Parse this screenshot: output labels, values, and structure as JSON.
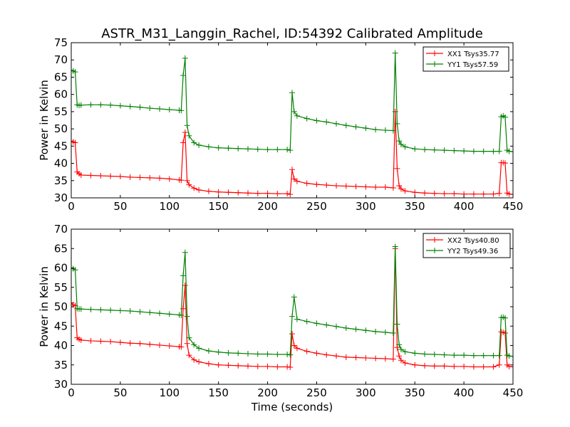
{
  "chart_data": [
    {
      "type": "line",
      "title": "ASTR_M31_Langgin_Rachel, ID:54392 Calibrated Amplitude",
      "xlabel": "",
      "ylabel": "Power in Kelvin",
      "xlim": [
        0,
        450
      ],
      "ylim": [
        30,
        75
      ],
      "xticks": [
        "0",
        "50",
        "100",
        "150",
        "200",
        "250",
        "300",
        "350",
        "400",
        "450"
      ],
      "yticks": [
        "30",
        "35",
        "40",
        "45",
        "50",
        "55",
        "60",
        "65",
        "70",
        "75"
      ],
      "legend": "top-right",
      "series": [
        {
          "name": "XX1 Tsys35.77",
          "color": "#ff0000",
          "x": [
            0,
            2,
            4,
            6,
            8,
            10,
            20,
            30,
            40,
            50,
            60,
            70,
            80,
            90,
            100,
            110,
            112,
            114,
            116,
            118,
            120,
            125,
            130,
            140,
            150,
            160,
            170,
            180,
            190,
            200,
            210,
            220,
            223,
            225,
            227,
            230,
            240,
            250,
            260,
            270,
            280,
            290,
            300,
            310,
            320,
            328,
            330,
            332,
            334,
            336,
            340,
            350,
            360,
            370,
            380,
            390,
            400,
            410,
            420,
            430,
            436,
            438,
            440,
            442,
            444,
            446,
            450
          ],
          "values": [
            46.5,
            46.2,
            46,
            37.5,
            37,
            36.6,
            36.5,
            36.4,
            36.3,
            36.2,
            36,
            35.9,
            35.8,
            35.7,
            35.5,
            35.2,
            35.1,
            46,
            49,
            35,
            33.8,
            32.8,
            32.3,
            31.9,
            31.7,
            31.6,
            31.5,
            31.4,
            31.3,
            31.3,
            31.2,
            31.2,
            31,
            38.2,
            35.5,
            34.8,
            34.2,
            33.9,
            33.7,
            33.5,
            33.4,
            33.3,
            33.2,
            33.1,
            33.1,
            32.9,
            55,
            38.5,
            33.5,
            32.6,
            32,
            31.6,
            31.4,
            31.3,
            31.2,
            31.2,
            31.1,
            31.1,
            31.1,
            31.1,
            31.3,
            40.2,
            40.2,
            40.1,
            31.4,
            31.1,
            31
          ]
        },
        {
          "name": "YY1 Tsys57.59",
          "color": "#008000",
          "x": [
            0,
            2,
            4,
            6,
            8,
            10,
            20,
            30,
            40,
            50,
            60,
            70,
            80,
            90,
            100,
            110,
            112,
            114,
            116,
            118,
            120,
            125,
            130,
            140,
            150,
            160,
            170,
            180,
            190,
            200,
            210,
            220,
            223,
            225,
            227,
            230,
            240,
            250,
            260,
            270,
            280,
            290,
            300,
            310,
            320,
            328,
            330,
            332,
            334,
            336,
            340,
            350,
            360,
            370,
            380,
            390,
            400,
            410,
            420,
            430,
            436,
            438,
            440,
            442,
            444,
            446,
            450
          ],
          "values": [
            67,
            66.8,
            66.5,
            57,
            56.8,
            56.9,
            57,
            57,
            56.9,
            56.7,
            56.5,
            56.3,
            56,
            55.8,
            55.6,
            55.4,
            55.3,
            65.5,
            70.5,
            51,
            48,
            46,
            45.3,
            44.8,
            44.5,
            44.4,
            44.3,
            44.2,
            44.1,
            44,
            44,
            44,
            43.8,
            60.5,
            55,
            53.8,
            53,
            52.4,
            52,
            51.5,
            51,
            50.6,
            50.2,
            49.8,
            49.6,
            49.5,
            72,
            51.5,
            46.5,
            45.5,
            44.8,
            44.2,
            44,
            43.9,
            43.8,
            43.7,
            43.6,
            43.5,
            43.5,
            43.5,
            43.5,
            53.5,
            53.8,
            53.4,
            43.8,
            43.5,
            43.4
          ]
        }
      ]
    },
    {
      "type": "line",
      "title": "",
      "xlabel": "Time (seconds)",
      "ylabel": "Power in Kelvin",
      "xlim": [
        0,
        450
      ],
      "ylim": [
        30,
        70
      ],
      "xticks": [
        "0",
        "50",
        "100",
        "150",
        "200",
        "250",
        "300",
        "350",
        "400",
        "450"
      ],
      "yticks": [
        "30",
        "35",
        "40",
        "45",
        "50",
        "55",
        "60",
        "65",
        "70"
      ],
      "legend": "top-right",
      "series": [
        {
          "name": "XX2 Tsys40.80",
          "color": "#ff0000",
          "x": [
            0,
            2,
            4,
            6,
            8,
            10,
            20,
            30,
            40,
            50,
            60,
            70,
            80,
            90,
            100,
            110,
            112,
            114,
            116,
            118,
            120,
            125,
            130,
            140,
            150,
            160,
            170,
            180,
            190,
            200,
            210,
            220,
            223,
            225,
            227,
            230,
            240,
            250,
            260,
            270,
            280,
            290,
            300,
            310,
            320,
            328,
            330,
            332,
            334,
            336,
            340,
            350,
            360,
            370,
            380,
            390,
            400,
            410,
            420,
            430,
            436,
            438,
            440,
            442,
            444,
            446,
            450
          ],
          "values": [
            51,
            50.5,
            50.3,
            42,
            41.6,
            41.4,
            41.2,
            41.1,
            41,
            40.8,
            40.6,
            40.5,
            40.3,
            40.1,
            39.9,
            39.7,
            39.6,
            49.5,
            55.5,
            40.5,
            37.5,
            36.3,
            35.8,
            35.3,
            35,
            34.9,
            34.8,
            34.7,
            34.6,
            34.6,
            34.5,
            34.5,
            34.4,
            43,
            40,
            39.3,
            38.5,
            38,
            37.6,
            37.3,
            37,
            36.9,
            36.8,
            36.7,
            36.6,
            36.5,
            65,
            39.5,
            37.3,
            36.2,
            35.5,
            35,
            34.8,
            34.7,
            34.7,
            34.6,
            34.6,
            34.5,
            34.5,
            34.5,
            35,
            43.5,
            43.4,
            43.2,
            35,
            34.6,
            34.5
          ]
        },
        {
          "name": "YY2 Tsys49.36",
          "color": "#008000",
          "x": [
            0,
            2,
            4,
            6,
            8,
            10,
            20,
            30,
            40,
            50,
            60,
            70,
            80,
            90,
            100,
            110,
            112,
            114,
            116,
            118,
            120,
            125,
            130,
            140,
            150,
            160,
            170,
            180,
            190,
            200,
            210,
            220,
            223,
            225,
            227,
            230,
            240,
            250,
            260,
            270,
            280,
            290,
            300,
            310,
            320,
            328,
            330,
            332,
            334,
            336,
            340,
            350,
            360,
            370,
            380,
            390,
            400,
            410,
            420,
            430,
            436,
            438,
            440,
            442,
            444,
            446,
            450
          ],
          "values": [
            60,
            59.8,
            59.5,
            49.5,
            49.4,
            49.4,
            49.3,
            49.2,
            49.1,
            49,
            48.9,
            48.7,
            48.5,
            48.3,
            48.1,
            47.9,
            47.8,
            58,
            64,
            47.5,
            42,
            40.2,
            39.3,
            38.6,
            38.3,
            38.1,
            38,
            37.9,
            37.8,
            37.8,
            37.7,
            37.7,
            37.6,
            47.5,
            52.5,
            46.8,
            46.2,
            45.7,
            45.3,
            44.9,
            44.5,
            44.2,
            43.9,
            43.6,
            43.4,
            43.2,
            65.5,
            45.5,
            40.2,
            39,
            38.4,
            38,
            37.8,
            37.7,
            37.6,
            37.5,
            37.5,
            37.4,
            37.4,
            37.4,
            37.4,
            47.2,
            47.3,
            47.1,
            37.5,
            37.3,
            37.2
          ]
        }
      ]
    }
  ]
}
